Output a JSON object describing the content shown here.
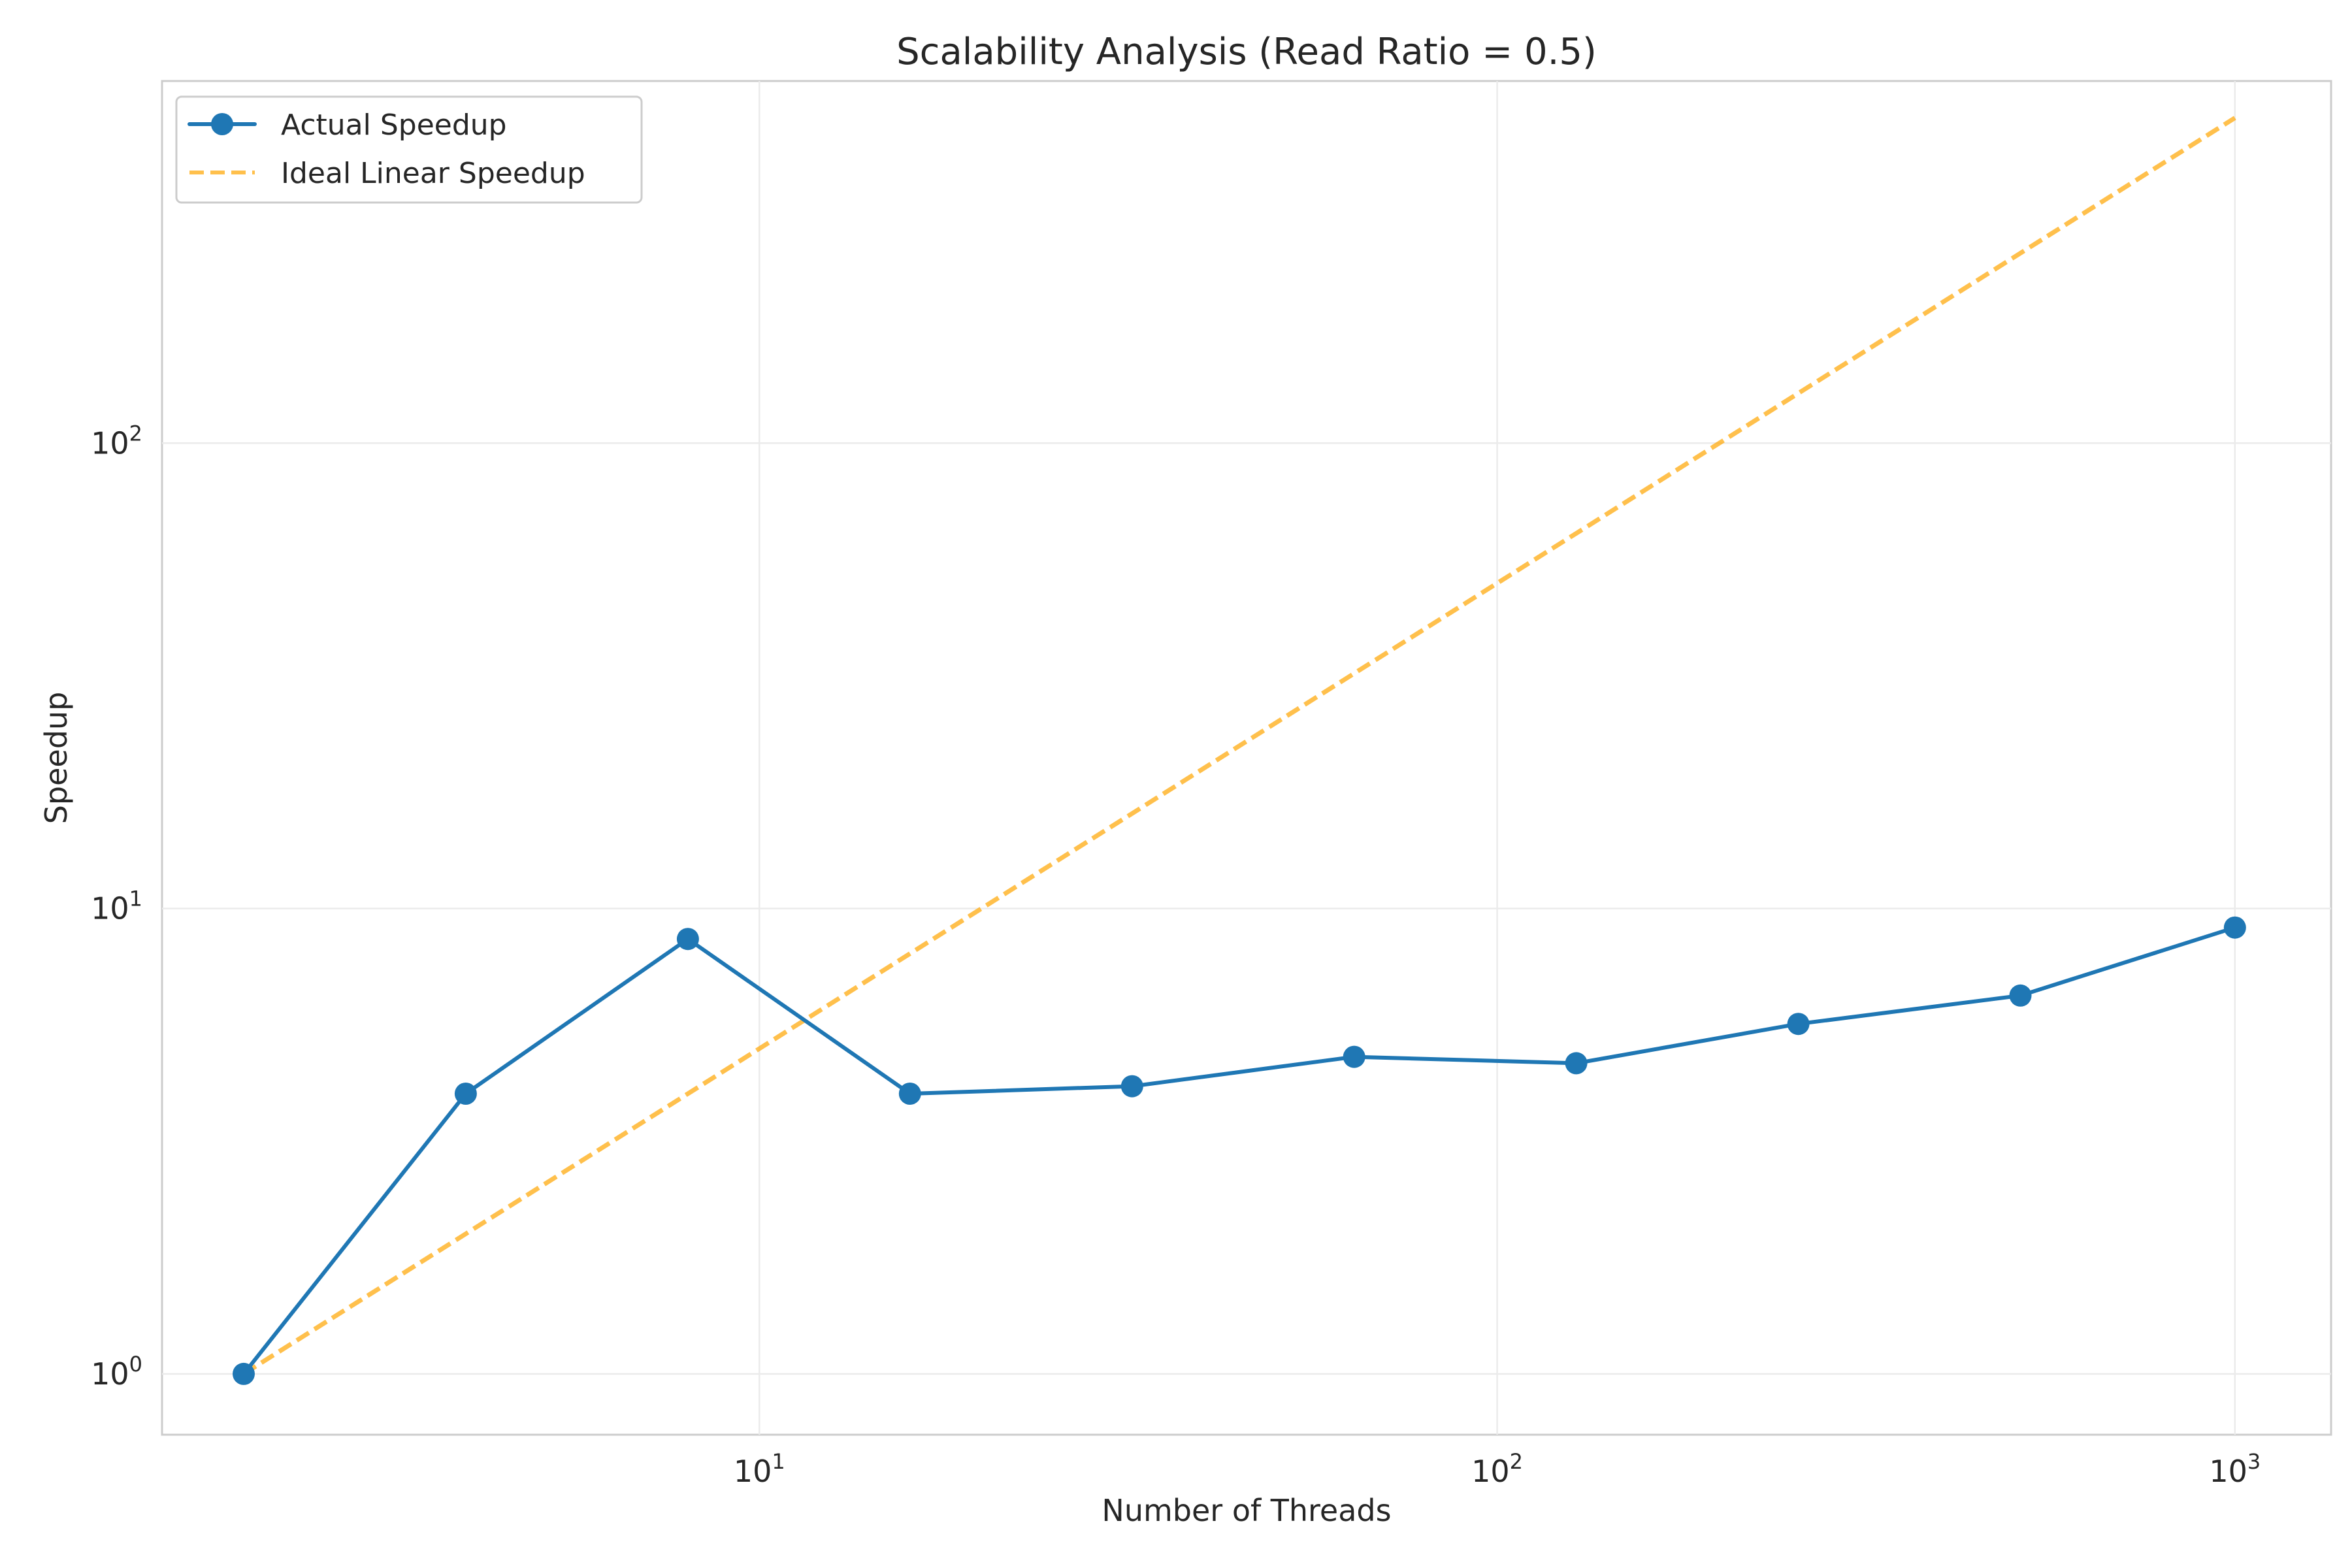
{
  "chart_data": {
    "type": "line",
    "title": "Scalability Analysis (Read Ratio = 0.5)",
    "xlabel": "Number of Threads",
    "ylabel": "Speedup",
    "xscale": "log",
    "yscale": "log",
    "xlim": [
      1.55,
      1350
    ],
    "ylim": [
      0.74,
      600
    ],
    "x_ticks": [
      {
        "value": 10,
        "base": "10",
        "exp": "1"
      },
      {
        "value": 100,
        "base": "10",
        "exp": "2"
      },
      {
        "value": 1000,
        "base": "10",
        "exp": "3"
      }
    ],
    "y_ticks": [
      {
        "value": 1,
        "base": "10",
        "exp": "0"
      },
      {
        "value": 10,
        "base": "10",
        "exp": "1"
      },
      {
        "value": 100,
        "base": "10",
        "exp": "2"
      }
    ],
    "grid": true,
    "legend_position": "top-left",
    "series": [
      {
        "name": "Actual Speedup",
        "color": "#1f77b4",
        "style": "solid",
        "marker": "circle",
        "x": [
          2,
          4,
          8,
          16,
          32,
          64,
          128,
          256,
          512,
          1000
        ],
        "y": [
          1.0,
          4.0,
          8.6,
          4.0,
          4.15,
          4.8,
          4.65,
          5.65,
          6.5,
          9.1
        ]
      },
      {
        "name": "Ideal Linear Speedup",
        "color": "#ffa500",
        "style": "dashed",
        "marker": "none",
        "x": [
          2,
          1000
        ],
        "y": [
          1,
          500
        ]
      }
    ]
  }
}
